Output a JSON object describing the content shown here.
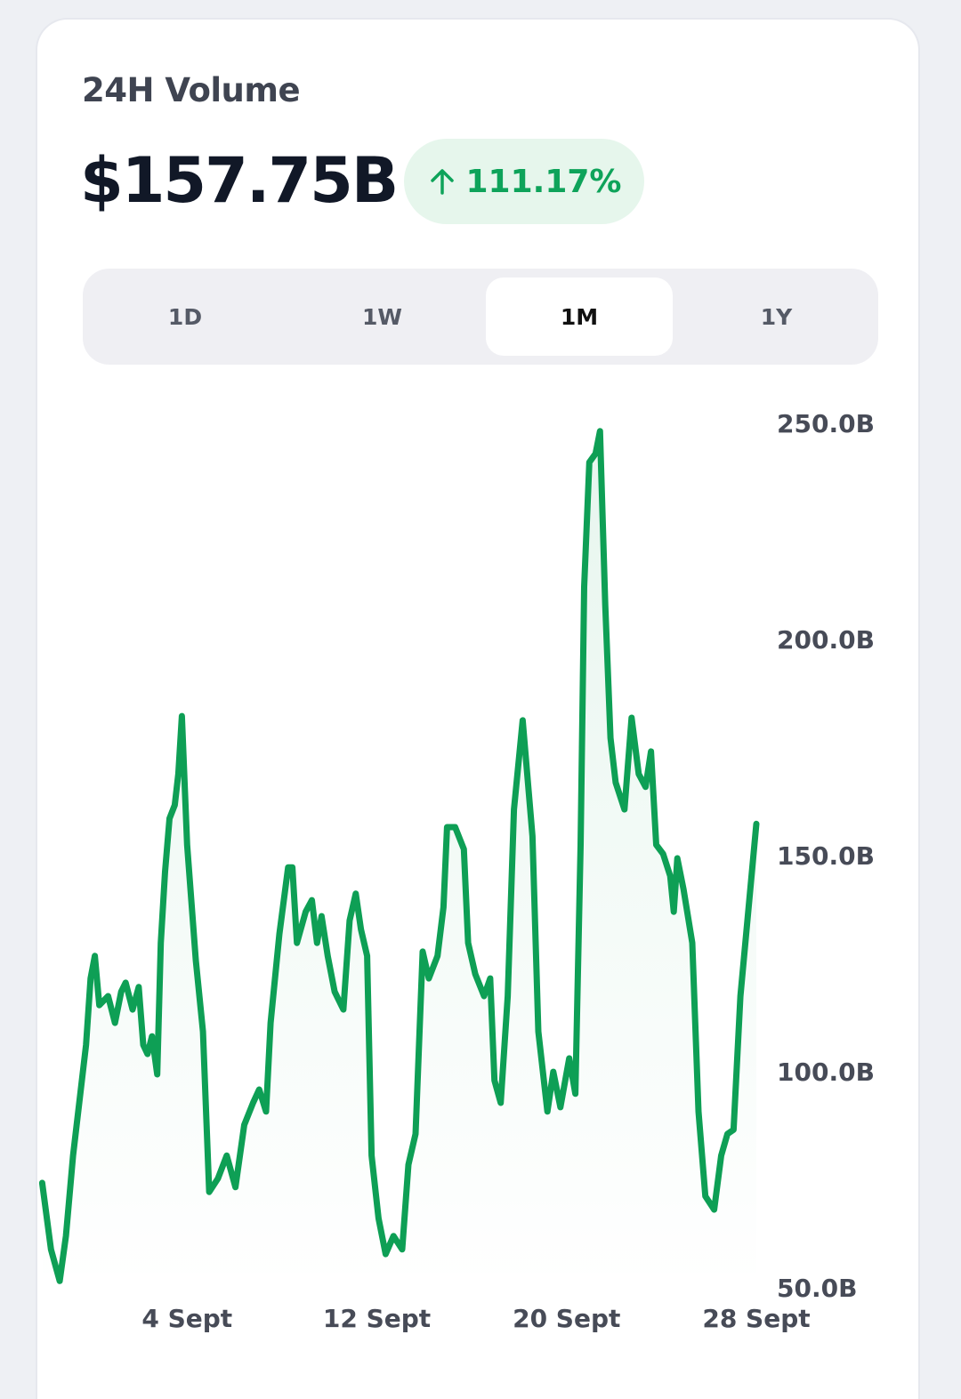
{
  "header": {
    "title": "24H Volume",
    "value": "$157.75B",
    "change": "111.17%"
  },
  "tabs": {
    "items": [
      "1D",
      "1W",
      "1M",
      "1Y"
    ],
    "active": 2
  },
  "chart_data": {
    "type": "area-line",
    "color": "#0e9f55",
    "x": [
      -2.11,
      -1.74,
      -1.37,
      -1.11,
      -0.81,
      -0.26,
      -0.07,
      0.11,
      0.3,
      0.67,
      0.96,
      1.22,
      1.41,
      1.7,
      1.96,
      2.15,
      2.33,
      2.52,
      2.74,
      2.89,
      3.07,
      3.26,
      3.48,
      3.63,
      3.78,
      4,
      4.37,
      4.67,
      4.93,
      5.3,
      5.67,
      6.04,
      6.41,
      6.78,
      7.04,
      7.33,
      7.52,
      7.89,
      8.26,
      8.44,
      8.63,
      9,
      9.26,
      9.48,
      9.67,
      9.93,
      10.22,
      10.59,
      10.85,
      11.11,
      11.33,
      11.59,
      11.78,
      12.07,
      12.37,
      12.7,
      13.07,
      13.33,
      13.63,
      13.93,
      14.19,
      14.56,
      14.81,
      14.96,
      15.3,
      15.67,
      15.85,
      16.15,
      16.52,
      16.78,
      16.96,
      17.22,
      17.52,
      17.78,
      18.15,
      18.56,
      18.81,
      19.19,
      19.44,
      19.74,
      20.11,
      20.37,
      20.59,
      20.74,
      20.96,
      21.22,
      21.41,
      21.63,
      21.85,
      22.07,
      22.44,
      22.74,
      23.04,
      23.33,
      23.56,
      23.78,
      24.07,
      24.37,
      24.52,
      24.67,
      24.93,
      25.3,
      25.56,
      25.85,
      26.22,
      26.52,
      26.78,
      27.04,
      27.33,
      28
    ],
    "values": [
      74.7,
      59.3,
      52,
      62.4,
      81,
      106.6,
      122,
      127.2,
      115.8,
      117.9,
      111.7,
      118.9,
      121,
      114.8,
      120,
      106.6,
      104.5,
      108.6,
      99.8,
      130.2,
      146.7,
      159,
      162.1,
      169.3,
      182.7,
      152.9,
      126.1,
      109.7,
      72.6,
      75.7,
      81,
      73.7,
      88.1,
      93.2,
      96.3,
      91.2,
      111.7,
      132.3,
      147.7,
      147.7,
      130.2,
      137.4,
      140.1,
      130.2,
      136.4,
      127.2,
      118.9,
      114.8,
      135.4,
      141.6,
      133.3,
      127.2,
      81,
      66.5,
      58.2,
      62.4,
      59.3,
      78.9,
      86,
      128.2,
      122,
      127.2,
      138.5,
      157,
      157,
      151.9,
      130.2,
      123,
      117.9,
      122,
      98.4,
      93.2,
      117.9,
      161.1,
      181.7,
      154.9,
      109.7,
      91.2,
      100.4,
      92.2,
      103.5,
      95.3,
      152.9,
      212.6,
      241.4,
      243.4,
      248.6,
      208.4,
      177.6,
      167.3,
      161.1,
      182.3,
      169.3,
      166.3,
      174.5,
      152.9,
      150.8,
      145.7,
      137.4,
      149.8,
      142.6,
      130.2,
      91.2,
      71.6,
      68.5,
      81,
      86,
      87,
      117.9,
      157.75
    ],
    "xlim": [
      -2.2,
      28
    ],
    "xticks": [
      {
        "value": 4,
        "label": "4 Sept"
      },
      {
        "value": 12,
        "label": "12 Sept"
      },
      {
        "value": 20,
        "label": "20 Sept"
      },
      {
        "value": 28,
        "label": "28 Sept"
      }
    ],
    "ylim": [
      50,
      250
    ],
    "yticks": [
      {
        "value": 250,
        "label": "250.0B"
      },
      {
        "value": 200,
        "label": "200.0B"
      },
      {
        "value": 150,
        "label": "150.0B"
      },
      {
        "value": 100,
        "label": "100.0B"
      },
      {
        "value": 50,
        "label": "50.0B"
      }
    ],
    "grid": false
  }
}
